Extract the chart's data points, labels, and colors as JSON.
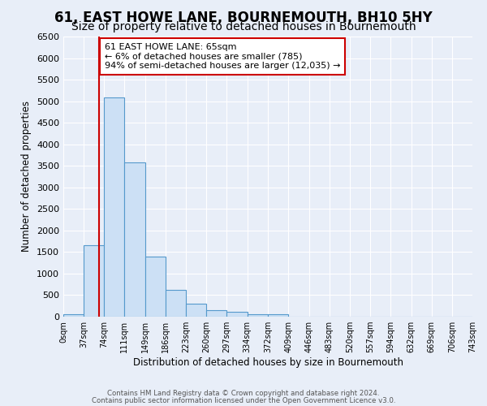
{
  "title": "61, EAST HOWE LANE, BOURNEMOUTH, BH10 5HY",
  "subtitle": "Size of property relative to detached houses in Bournemouth",
  "xlabel": "Distribution of detached houses by size in Bournemouth",
  "ylabel": "Number of detached properties",
  "bin_edges": [
    0,
    37,
    74,
    111,
    149,
    186,
    223,
    260,
    297,
    334,
    372,
    409,
    446,
    483,
    520,
    557,
    594,
    632,
    669,
    706,
    743
  ],
  "bar_heights": [
    50,
    1650,
    5080,
    3580,
    1400,
    620,
    300,
    155,
    105,
    60,
    50,
    0,
    0,
    0,
    0,
    0,
    0,
    0,
    0,
    0
  ],
  "bar_color": "#cce0f5",
  "bar_edge_color": "#5599cc",
  "property_size": 65,
  "property_line_color": "#cc0000",
  "annotation_title": "61 EAST HOWE LANE: 65sqm",
  "annotation_line1": "← 6% of detached houses are smaller (785)",
  "annotation_line2": "94% of semi-detached houses are larger (12,035) →",
  "annotation_box_color": "#cc0000",
  "ylim": [
    0,
    6500
  ],
  "yticks": [
    0,
    500,
    1000,
    1500,
    2000,
    2500,
    3000,
    3500,
    4000,
    4500,
    5000,
    5500,
    6000,
    6500
  ],
  "footer_line1": "Contains HM Land Registry data © Crown copyright and database right 2024.",
  "footer_line2": "Contains public sector information licensed under the Open Government Licence v3.0.",
  "background_color": "#e8eef8",
  "plot_background_color": "#e8eef8",
  "grid_color": "#ffffff",
  "title_fontsize": 12,
  "subtitle_fontsize": 10
}
